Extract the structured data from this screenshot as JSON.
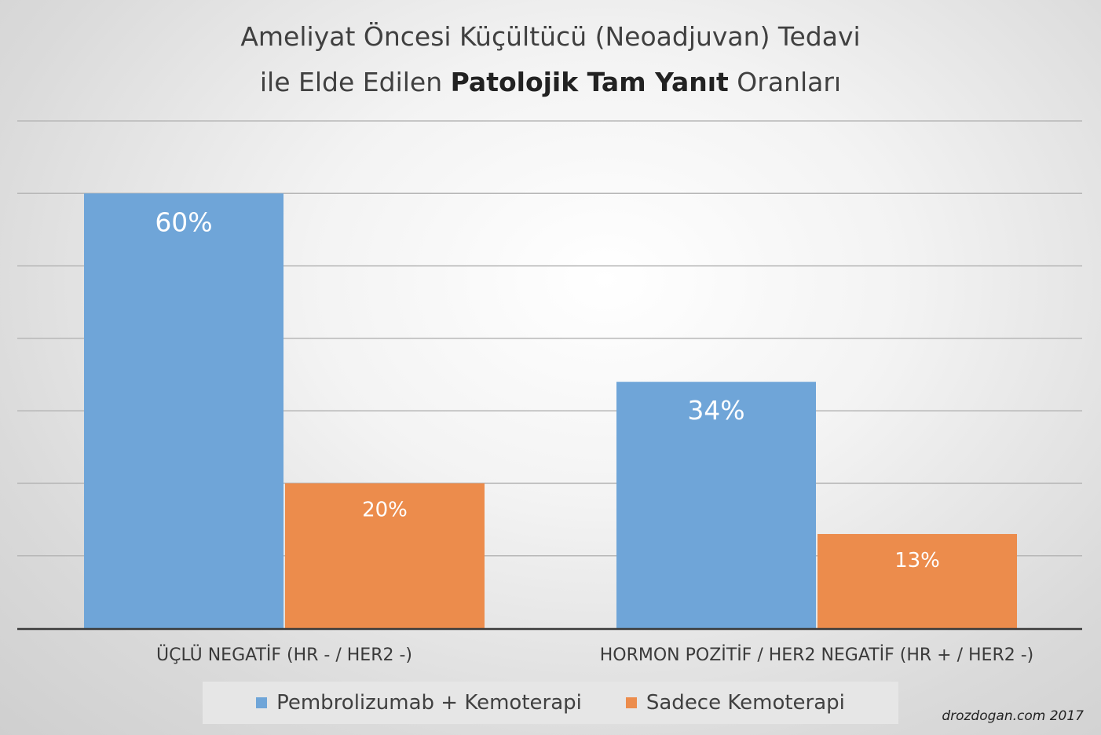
{
  "title": {
    "line1": "Ameliyat Öncesi Küçültücü (Neoadjuvan) Tedavi",
    "line2_pre": "ile Elde Edilen ",
    "line2_bold": "Patolojik Tam Yanıt",
    "line2_post": " Oranları"
  },
  "credit": "drozdogan.com 2017",
  "colors": {
    "blue": "#6fa5d8",
    "orange": "#ec8c4c",
    "grid": "#b7b7b7",
    "axis": "#3a3a3a"
  },
  "chart_data": {
    "type": "bar",
    "categories": [
      "ÜÇLÜ NEGATİF (HR - / HER2 -)",
      "HORMON POZİTİF / HER2 NEGATİF (HR + / HER2 -)"
    ],
    "series": [
      {
        "name": "Pembrolizumab + Kemoterapi",
        "values": [
          60,
          34
        ],
        "labels": [
          "60%",
          "34%"
        ],
        "color": "#6fa5d8"
      },
      {
        "name": "Sadece Kemoterapi",
        "values": [
          20,
          13
        ],
        "labels": [
          "20%",
          "13%"
        ],
        "color": "#ec8c4c"
      }
    ],
    "ylim": [
      0,
      70
    ],
    "grid": true,
    "legend_position": "bottom"
  }
}
